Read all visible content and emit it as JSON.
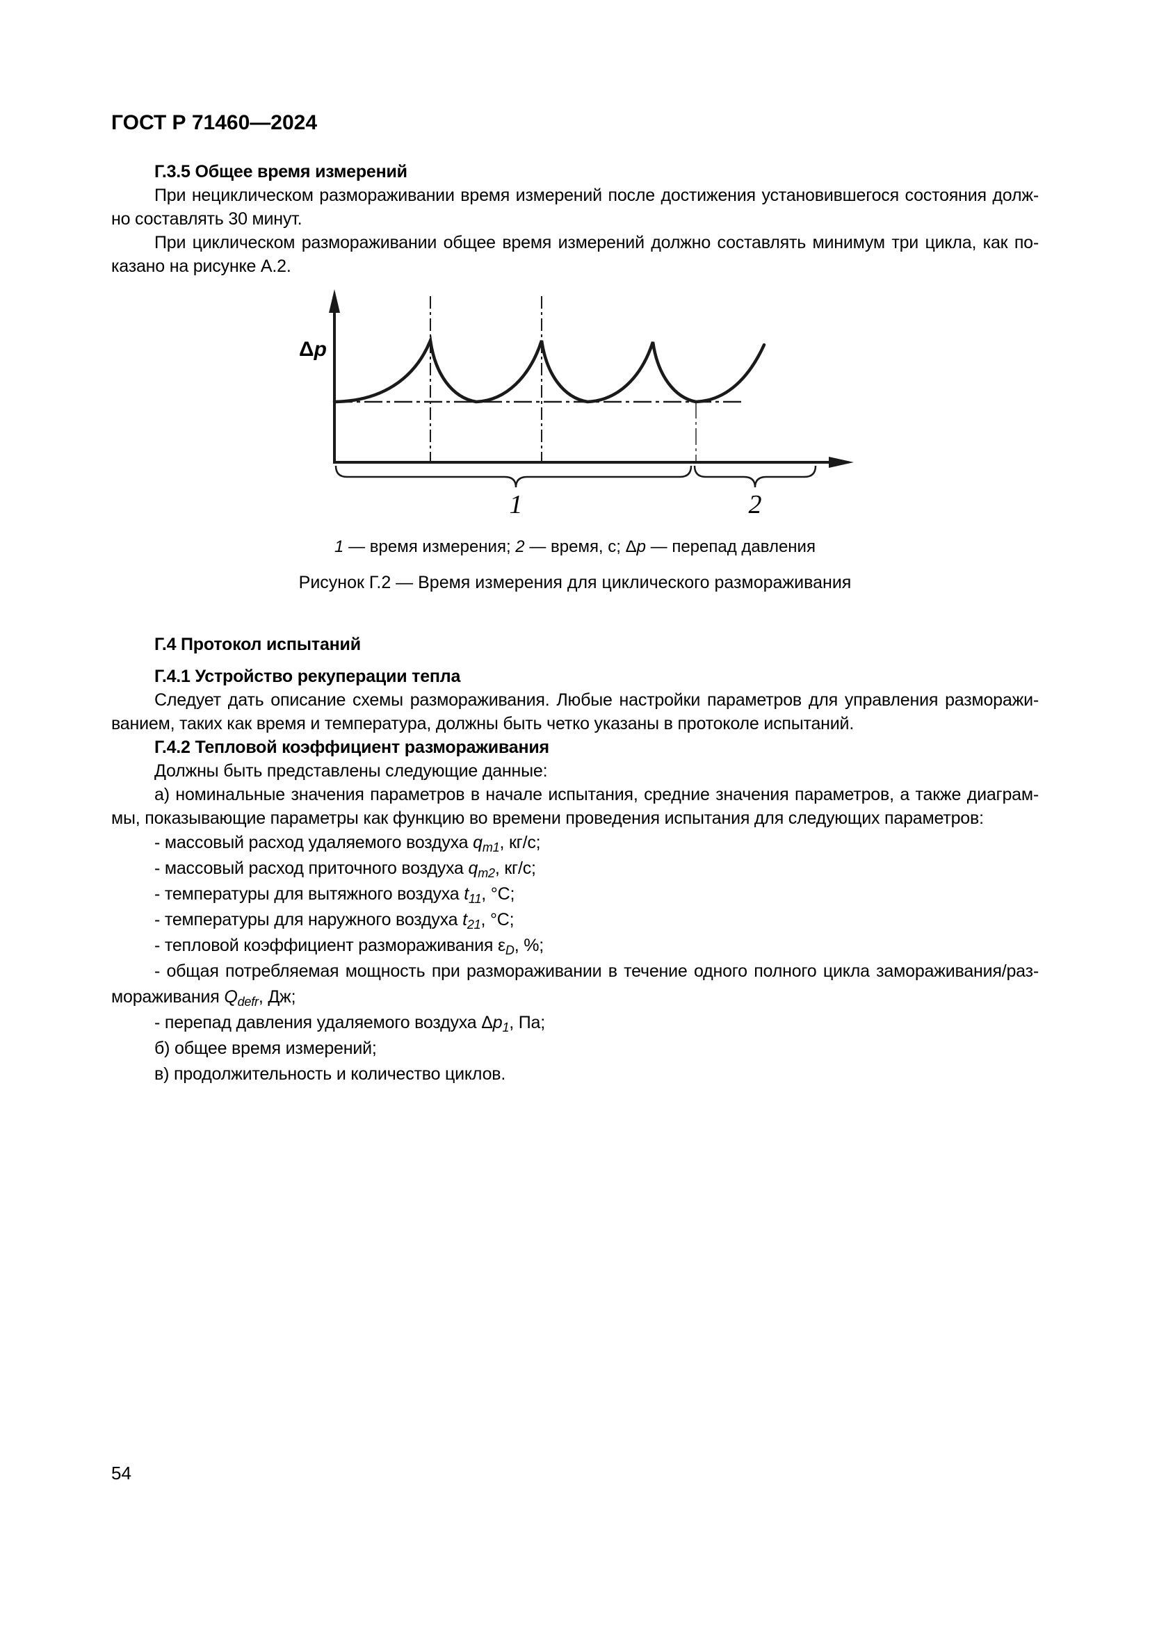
{
  "page": {
    "doc_code": "ГОСТ Р 71460—2024",
    "page_number": "54"
  },
  "sections": {
    "g35": {
      "heading": "Г.3.5 Общее время измерений",
      "p1": {
        "l1": "При нециклическом размораживании время измерений после достижения установившегося состояния долж-",
        "l2": "но составлять 30 минут."
      },
      "p2": {
        "l1": "При циклическом размораживании общее время измерений должно составлять минимум три цикла, как по-",
        "l2": "казано на рисунке А.2."
      }
    },
    "g4": {
      "heading": "Г.4 Протокол испытаний"
    },
    "g41": {
      "heading": "Г.4.1 Устройство рекуперации тепла",
      "p": {
        "l1": "Следует дать описание схемы размораживания. Любые настройки параметров для управления разморажи-",
        "l2": "ванием, таких как время и температура, должны быть четко указаны в протоколе испытаний."
      }
    },
    "g42": {
      "heading": "Г.4.2 Тепловой коэффициент размораживания",
      "intro": "Должны быть представлены следующие данные:",
      "item_a_l1": "а) номинальные значения параметров в начале испытания, средние значения параметров, а также диаграм-",
      "item_a_l2": "мы, показывающие параметры как функцию во времени проведения испытания для следующих параметров:",
      "items": {
        "qm1": [
          {
            "t": "- массовый расход удаляемого воздуха "
          },
          {
            "i": "q"
          },
          {
            "s": "m1"
          },
          {
            "t": ", кг/с;"
          }
        ],
        "qm2": [
          {
            "t": "- массовый расход приточного воздуха "
          },
          {
            "i": "q"
          },
          {
            "s": "m2"
          },
          {
            "t": ", кг/с;"
          }
        ],
        "t11": [
          {
            "t": "- температуры для вытяжного воздуха "
          },
          {
            "i": "t"
          },
          {
            "s": "11"
          },
          {
            "t": ", °С;"
          }
        ],
        "t21": [
          {
            "t": "- температуры для наружного воздуха "
          },
          {
            "i": "t"
          },
          {
            "s": "21"
          },
          {
            "t": ", °С;"
          }
        ],
        "eps": [
          {
            "t": "- тепловой коэффициент размораживания ε"
          },
          {
            "s": "D"
          },
          {
            "t": ", %;"
          }
        ],
        "q_full_l1": "- общая потребляемая мощность при размораживании в течение одного полного цикла замораживания/раз-",
        "q_full_l2": [
          {
            "t": "мораживания "
          },
          {
            "i": "Q"
          },
          {
            "s": "defr"
          },
          {
            "t": ", Дж;"
          }
        ],
        "dp": [
          {
            "t": "- перепад давления удаляемого воздуха Δ"
          },
          {
            "i": "p"
          },
          {
            "s": "1"
          },
          {
            "t": ", Па;"
          }
        ],
        "b": "б) общее время измерений;",
        "v": "в) продолжительность и количество циклов."
      }
    }
  },
  "figure": {
    "ylabel_delta": "Δ",
    "ylabel_p": "p",
    "brace1_label": "1",
    "brace2_label": "2",
    "caption_parts": [
      {
        "i": "1"
      },
      {
        "t": " — время измерения; "
      },
      {
        "i": "2"
      },
      {
        "t": " — время, с; Δ"
      },
      {
        "i": "p"
      },
      {
        "t": " — перепад давления"
      }
    ],
    "title": "Рисунок Г.2 — Время измерения для циклического размораживания"
  },
  "chart_data": {
    "type": "line",
    "title": "Рисунок Г.2 — Время измерения для циклического размораживания",
    "ylabel": "Δp",
    "xlabel": "",
    "axes_numeric": false,
    "cycles_shown": 3,
    "legend_annotations": [
      "1 — время измерения",
      "2 — время, с",
      "Δp — перепад давления"
    ]
  }
}
